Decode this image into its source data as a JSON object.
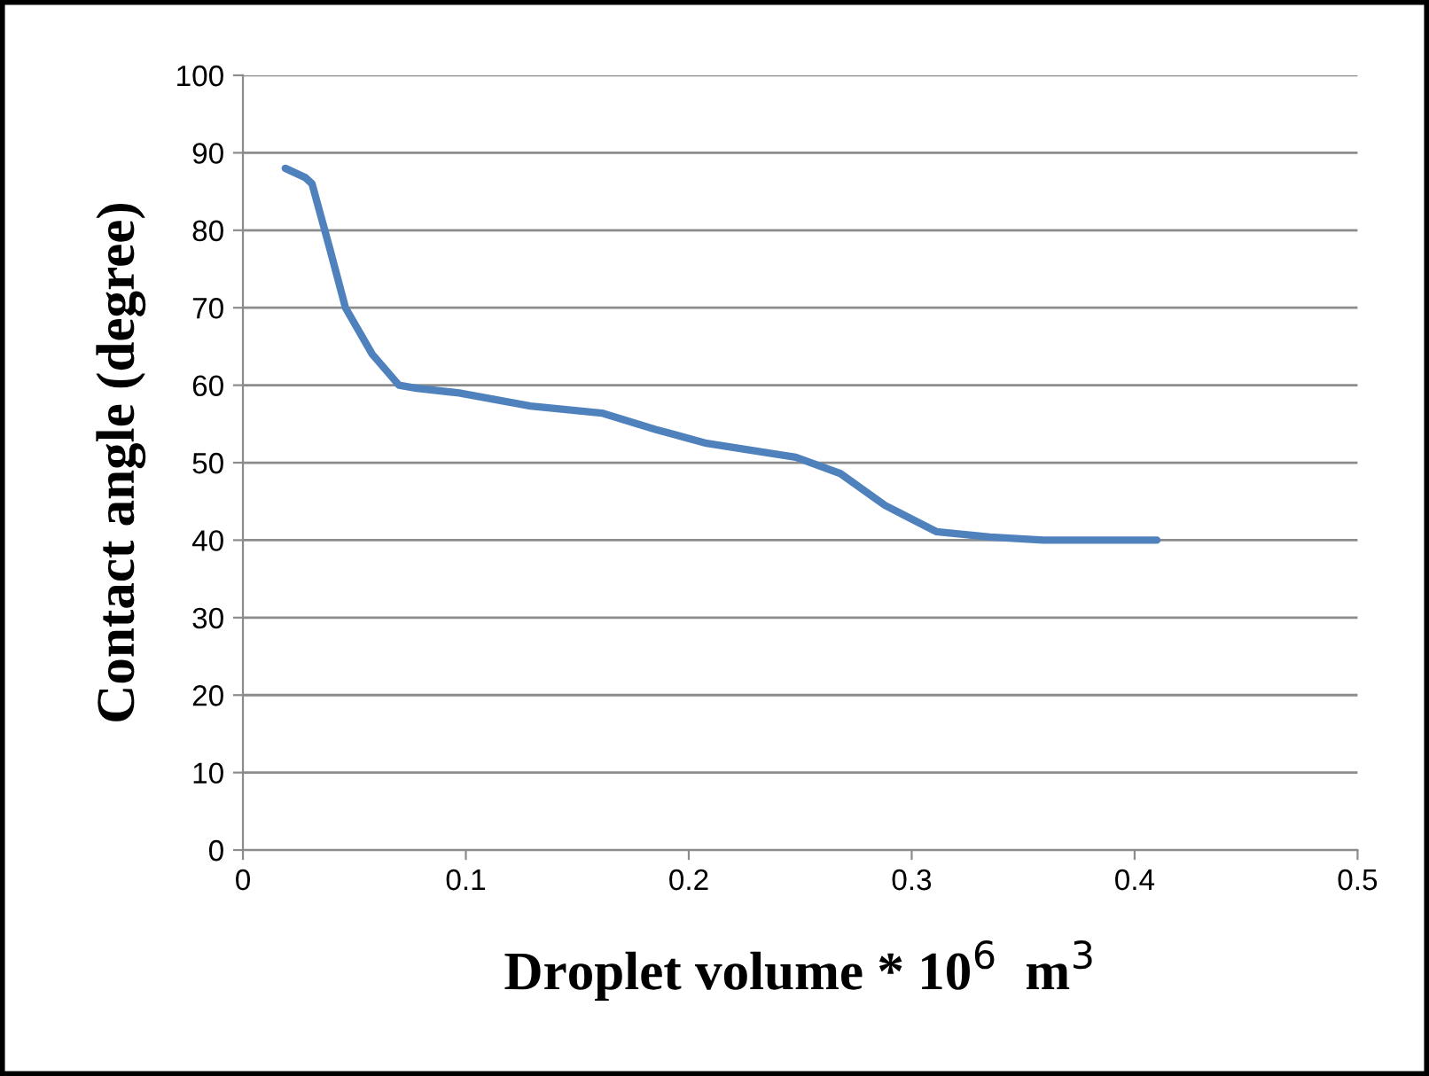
{
  "chart_data": {
    "type": "line",
    "xlabel": "Droplet volume * 10$^{6}$  m$^{3}$",
    "ylabel": "Contact angle (degree)",
    "series": [
      {
        "color": "#4f81bd",
        "x": [
          0.019,
          0.028,
          0.031,
          0.039,
          0.046,
          0.058,
          0.07,
          0.078,
          0.097,
          0.129,
          0.161,
          0.185,
          0.208,
          0.248,
          0.268,
          0.288,
          0.311,
          0.335,
          0.359,
          0.41
        ],
        "values": [
          88,
          86.8,
          86,
          77.6,
          70,
          64,
          60,
          59.6,
          59,
          57.3,
          56.4,
          54.3,
          52.5,
          50.7,
          48.6,
          44.5,
          41.1,
          40.4,
          40,
          40
        ]
      }
    ],
    "xlim": [
      0,
      0.5
    ],
    "xticks": [
      0,
      0.1,
      0.2,
      0.3,
      0.4,
      0.5
    ],
    "ylim": [
      0,
      100
    ],
    "yticks": [
      0,
      10,
      20,
      30,
      40,
      50,
      60,
      70,
      80,
      90,
      100
    ],
    "grid": "y",
    "marker": "none",
    "line_style": "solid"
  }
}
